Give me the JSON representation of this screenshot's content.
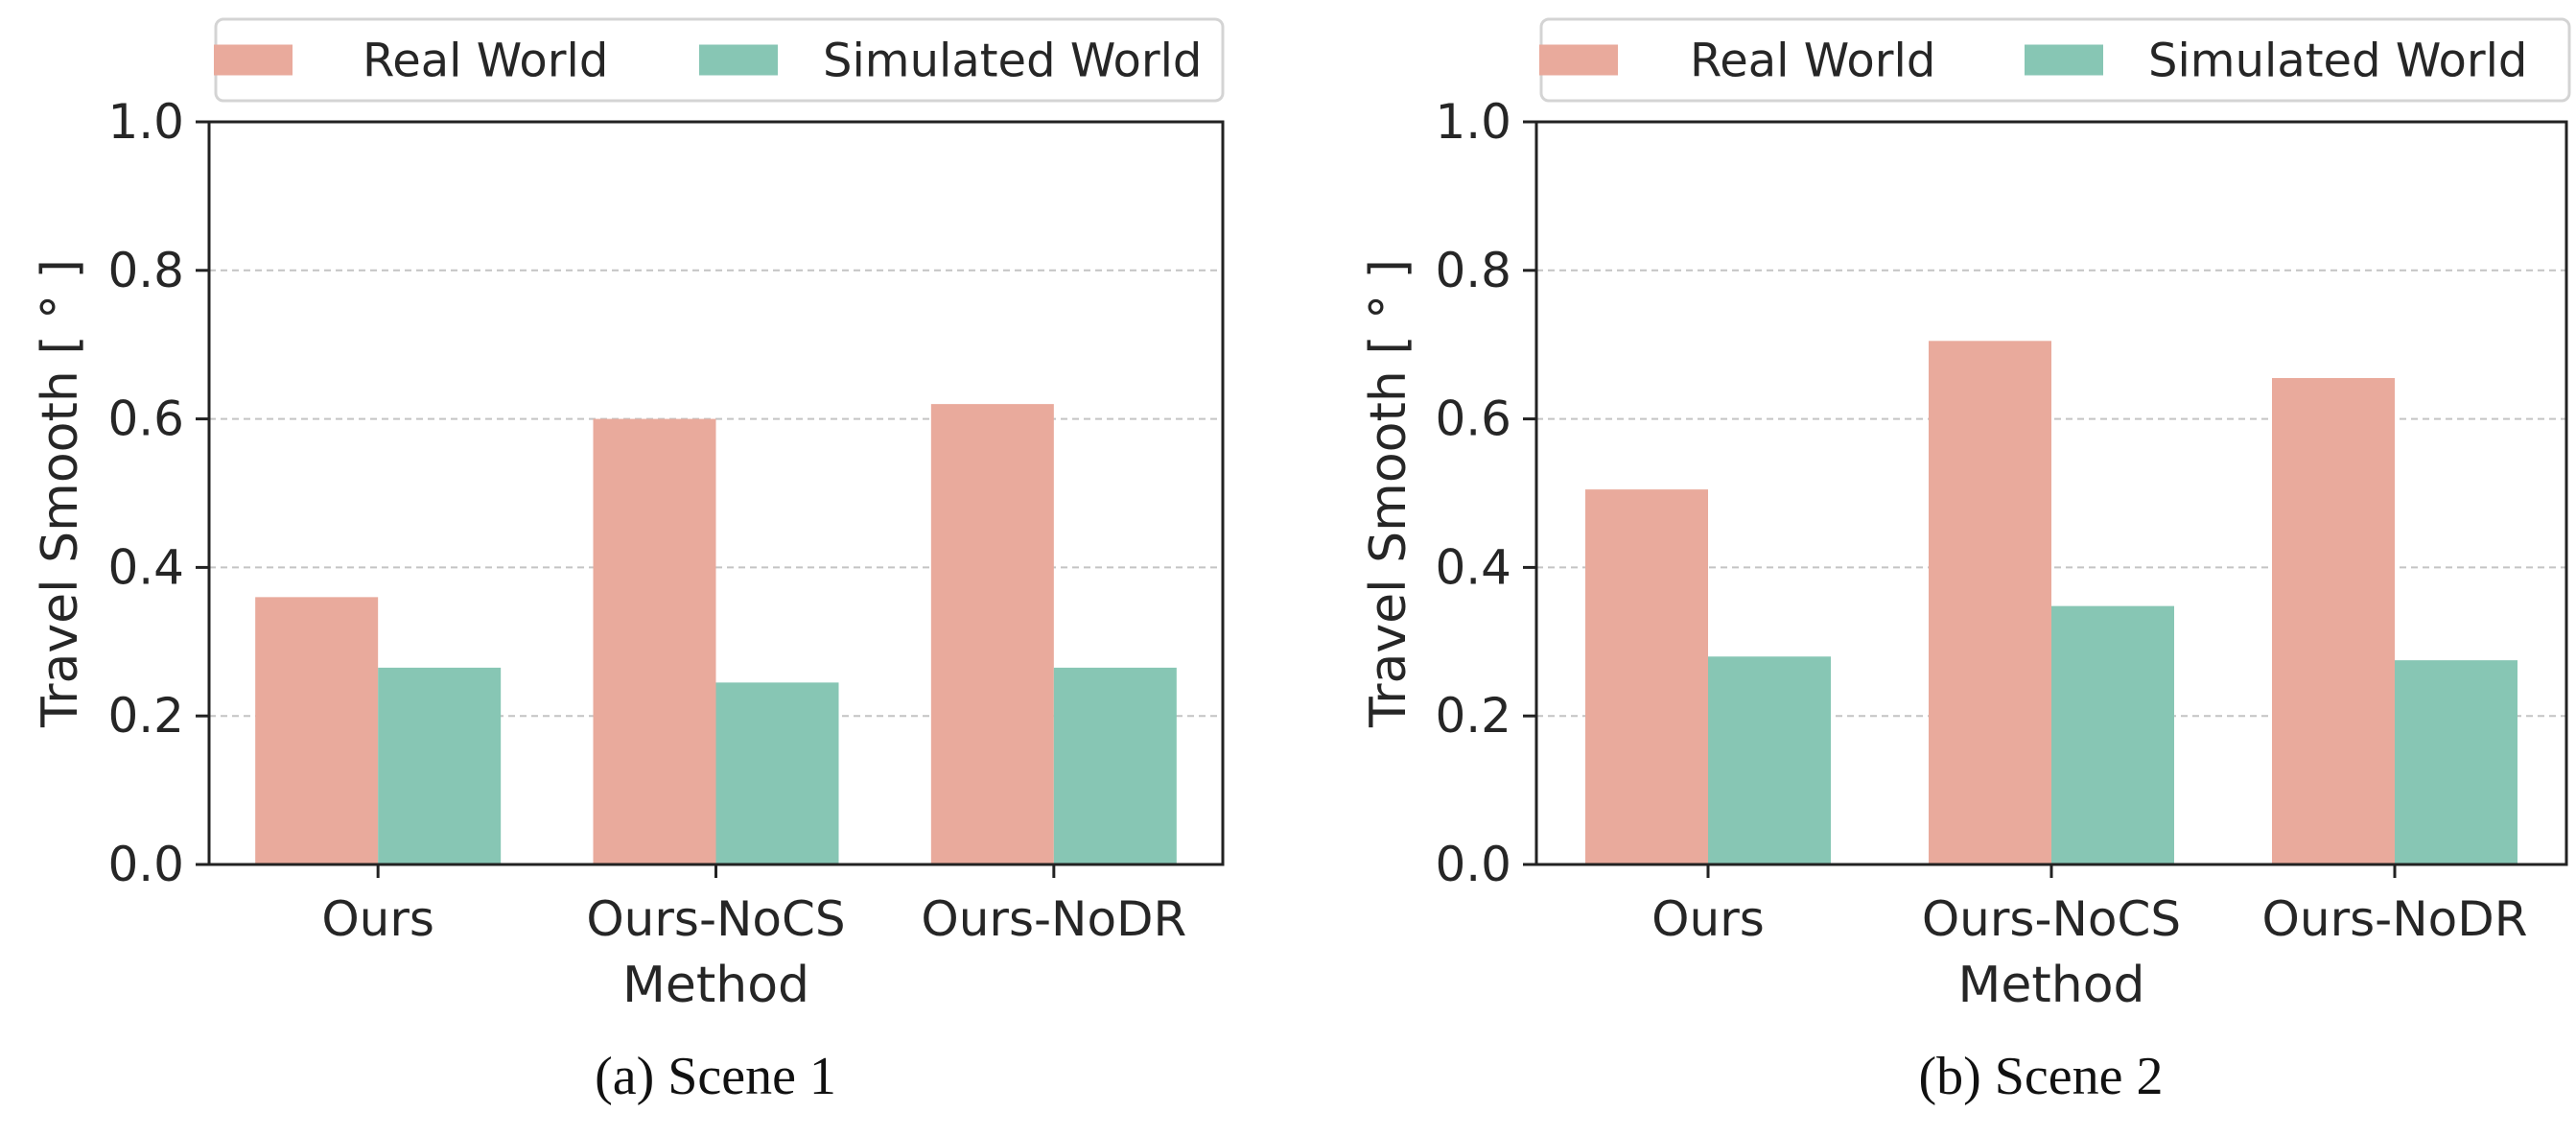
{
  "chart_data": [
    {
      "type": "bar",
      "caption": "(a) Scene 1",
      "xlabel": "Method",
      "ylabel": "Travel Smooth [ ° ]",
      "ylim": [
        0,
        1.0
      ],
      "yticks": [
        "0.0",
        "0.2",
        "0.4",
        "0.6",
        "0.8",
        "1.0"
      ],
      "grid": true,
      "legend_position": "top-center",
      "categories": [
        "Ours",
        "Ours-NoCS",
        "Ours-NoDR"
      ],
      "series": [
        {
          "name": "Real World",
          "color": "#e9aa9c",
          "values": [
            0.36,
            0.6,
            0.62
          ]
        },
        {
          "name": "Simulated World",
          "color": "#87c6b4",
          "values": [
            0.265,
            0.245,
            0.265
          ]
        }
      ]
    },
    {
      "type": "bar",
      "caption": "(b) Scene 2",
      "xlabel": "Method",
      "ylabel": "Travel Smooth [ ° ]",
      "ylim": [
        0,
        1.0
      ],
      "yticks": [
        "0.0",
        "0.2",
        "0.4",
        "0.6",
        "0.8",
        "1.0"
      ],
      "grid": true,
      "legend_position": "top-center",
      "categories": [
        "Ours",
        "Ours-NoCS",
        "Ours-NoDR"
      ],
      "series": [
        {
          "name": "Real World",
          "color": "#e9aa9c",
          "values": [
            0.505,
            0.705,
            0.655
          ]
        },
        {
          "name": "Simulated World",
          "color": "#87c6b4",
          "values": [
            0.28,
            0.348,
            0.275
          ]
        }
      ]
    }
  ]
}
